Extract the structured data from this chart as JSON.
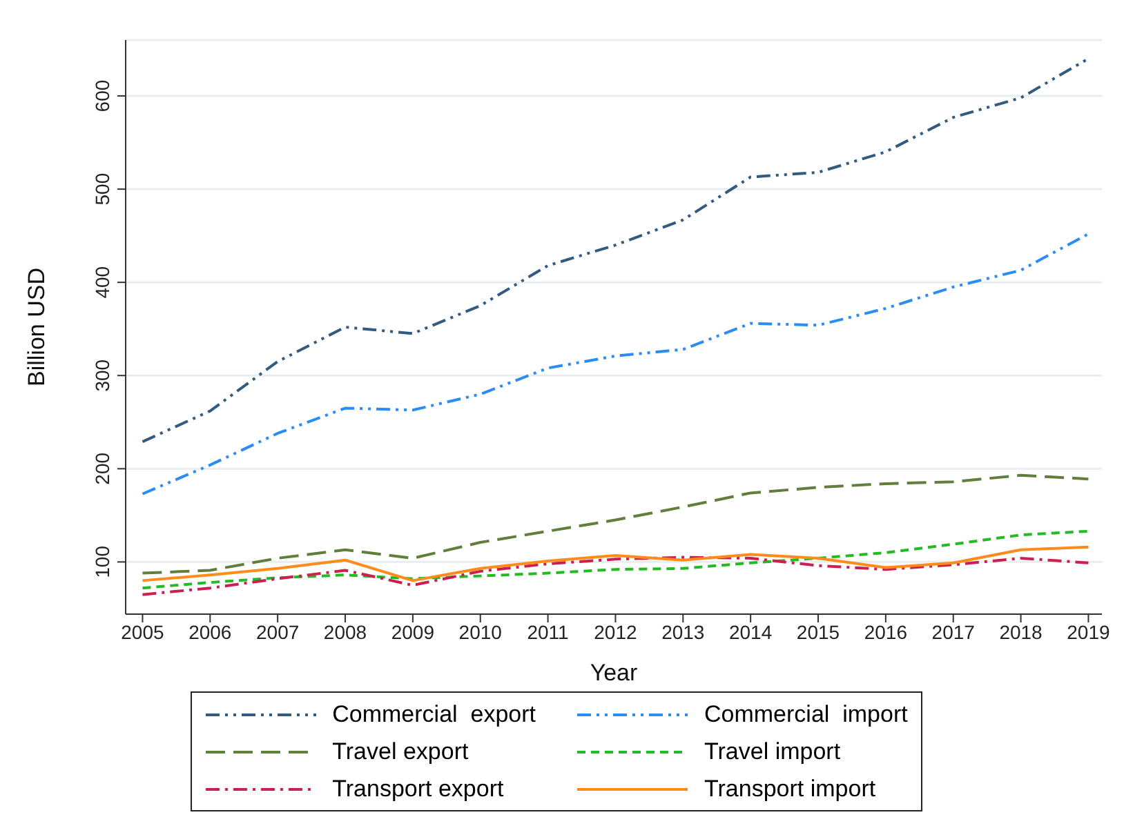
{
  "chart_data": {
    "type": "line",
    "xlabel": "Year",
    "ylabel": "Billion USD",
    "x": [
      2005,
      2006,
      2007,
      2008,
      2009,
      2010,
      2011,
      2012,
      2013,
      2014,
      2015,
      2016,
      2017,
      2018,
      2019
    ],
    "xlim": [
      2004.75,
      2019.2
    ],
    "xticks": [
      2005,
      2006,
      2007,
      2008,
      2009,
      2010,
      2011,
      2012,
      2013,
      2014,
      2015,
      2016,
      2017,
      2018,
      2019
    ],
    "ylim": [
      44,
      660
    ],
    "yticks": [
      100,
      200,
      300,
      400,
      500,
      600
    ],
    "grid": "y",
    "legend": "bottom",
    "marker": "none",
    "series": [
      {
        "name": "Commercial  export",
        "color": "#335a7f",
        "line_style": "dashed",
        "values": [
          229,
          262,
          315,
          352,
          345,
          375,
          418,
          440,
          467,
          513,
          518,
          540,
          577,
          598,
          640
        ]
      },
      {
        "name": "Commercial  import",
        "color": "#2b8cf2",
        "line_style": "dashed",
        "values": [
          173,
          204,
          238,
          265,
          263,
          280,
          308,
          321,
          328,
          356,
          354,
          372,
          395,
          413,
          452
        ]
      },
      {
        "name": "Travel export",
        "color": "#5f7f3a",
        "line_style": "dashed",
        "values": [
          88,
          91,
          104,
          113,
          104,
          121,
          133,
          145,
          159,
          174,
          180,
          184,
          186,
          193,
          189
        ]
      },
      {
        "name": "Travel import",
        "color": "#22bb22",
        "line_style": "dashed",
        "values": [
          72,
          78,
          83,
          86,
          82,
          85,
          88,
          92,
          93,
          99,
          104,
          110,
          119,
          129,
          133
        ]
      },
      {
        "name": "Transport export",
        "color": "#cc1f4f",
        "line_style": "dashed",
        "values": [
          65,
          72,
          82,
          91,
          75,
          90,
          98,
          103,
          105,
          104,
          96,
          92,
          97,
          104,
          99
        ]
      },
      {
        "name": "Transport import",
        "color": "#ff8c1a",
        "line_style": "solid",
        "values": [
          80,
          86,
          93,
          102,
          80,
          93,
          101,
          107,
          102,
          108,
          104,
          94,
          99,
          113,
          116
        ]
      }
    ]
  }
}
